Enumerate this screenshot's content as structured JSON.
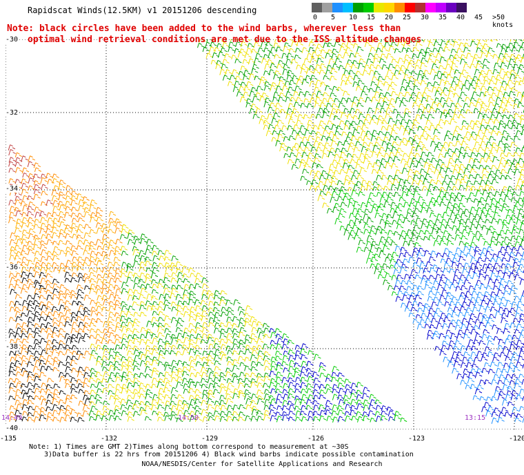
{
  "title": "Rapidscat Winds(12.5KM) v1 20151206 descending",
  "note": {
    "line1": "Note: black circles have been added to the wind barbs, wherever less than",
    "line2": "optimal wind retrieval conditions are met due to the ISS altitude changes"
  },
  "legend": {
    "unit": ">50 knots",
    "labels": [
      "0",
      "5",
      "10",
      "15",
      "20",
      "25",
      "30",
      "35",
      "40",
      "45",
      ">50 knots"
    ],
    "colors": [
      "#606060",
      "#a0a0a0",
      "#1e90ff",
      "#00bfff",
      "#00a000",
      "#00cc00",
      "#e8e800",
      "#ffd700",
      "#ff8c00",
      "#ff0000",
      "#b03030",
      "#ff00ff",
      "#c000ff",
      "#6a00c0",
      "#3a1060"
    ]
  },
  "lat_labels": [
    "-30",
    "-32",
    "-34",
    "-36",
    "-38",
    "-40"
  ],
  "lon_labels": [
    "-135",
    "-132",
    "-129",
    "-126",
    "-123",
    "-120"
  ],
  "time_labels": [
    "14:49",
    "14:50",
    "13:15"
  ],
  "footer": {
    "line1": "Note: 1) Times are GMT 2)Times along bottom correspond to measurement at ~30S",
    "line2": "3)Data buffer is 22 hrs from 20151206 4) Black wind barbs indicate possible contamination",
    "line3": "NOAA/NESDIS/Center for Satellite Applications and Research"
  }
}
